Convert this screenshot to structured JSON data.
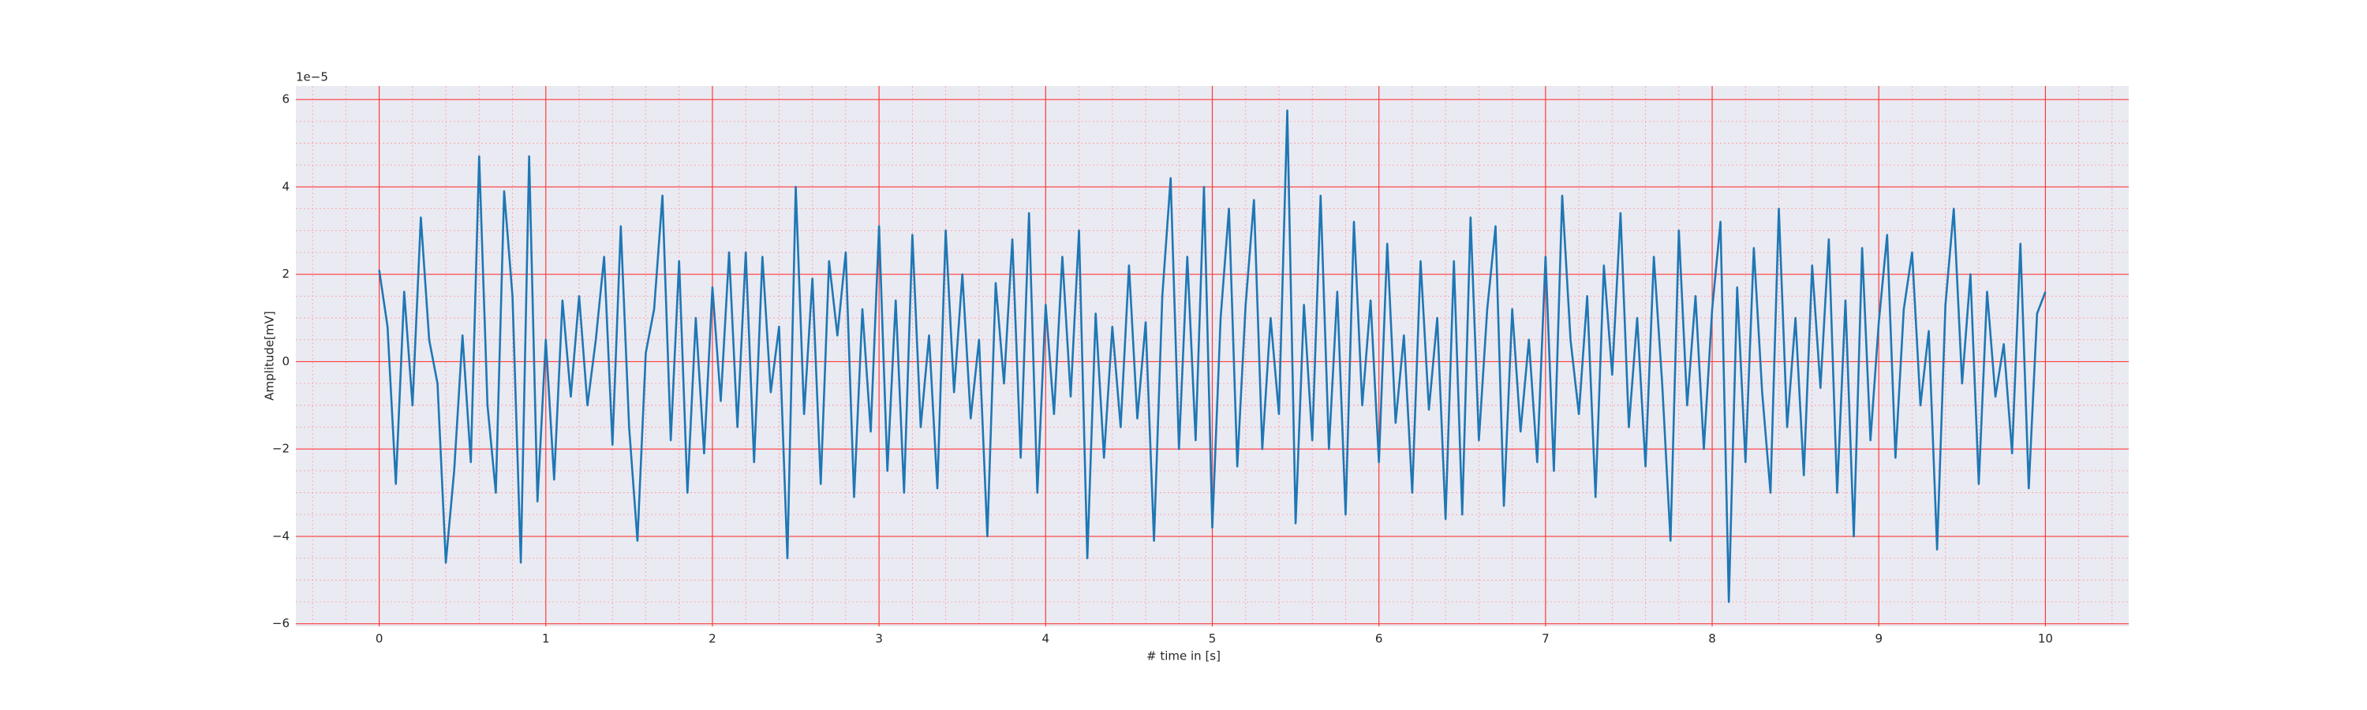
{
  "chart_data": {
    "type": "line",
    "x_label": "# time in [s]",
    "y_label": "Amplitude[mV]",
    "y_offset_label": "1e−5",
    "color": "#1f77b4",
    "grid": true,
    "minor_grid": true,
    "xlim": [
      -0.5,
      10.5
    ],
    "ylim": [
      -6.06,
      6.31
    ],
    "xticks": [
      0,
      1,
      2,
      3,
      4,
      5,
      6,
      7,
      8,
      9,
      10
    ],
    "yticks": [
      {
        "value": -6,
        "label": "−6"
      },
      {
        "value": -4,
        "label": "−4"
      },
      {
        "value": -2,
        "label": "−2"
      },
      0,
      2,
      4,
      6
    ],
    "minor_xticks": [
      -0.4,
      -0.2,
      0.2,
      0.4,
      0.6,
      0.8,
      1.2,
      1.4,
      1.6,
      1.8,
      2.2,
      2.4,
      2.6,
      2.8,
      3.2,
      3.4,
      3.6,
      3.8,
      4.2,
      4.4,
      4.6,
      4.8,
      5.2,
      5.4,
      5.6,
      5.8,
      6.2,
      6.4,
      6.6,
      6.8,
      7.2,
      7.4,
      7.6,
      7.8,
      8.2,
      8.4,
      8.6,
      8.8,
      9.2,
      9.4,
      9.6,
      9.8,
      10.2,
      10.4
    ],
    "minor_yticks": [
      -5.5,
      -5,
      -4.5,
      -3.5,
      -3,
      -2.5,
      -1.5,
      -1,
      -0.5,
      0.5,
      1,
      1.5,
      2.5,
      3,
      3.5,
      4.5,
      5,
      5.5
    ],
    "x": [
      0,
      0.05,
      0.1,
      0.15,
      0.2,
      0.25,
      0.3,
      0.35,
      0.4,
      0.45,
      0.5,
      0.55,
      0.6,
      0.65,
      0.7,
      0.75,
      0.8,
      0.85,
      0.9,
      0.95,
      1,
      1.05,
      1.1,
      1.15,
      1.2,
      1.25,
      1.3,
      1.35,
      1.4,
      1.45,
      1.5,
      1.55,
      1.6,
      1.65,
      1.7,
      1.75,
      1.8,
      1.85,
      1.9,
      1.95,
      2,
      2.05,
      2.1,
      2.15,
      2.2,
      2.25,
      2.3,
      2.35,
      2.4,
      2.45,
      2.5,
      2.55,
      2.6,
      2.65,
      2.7,
      2.75,
      2.8,
      2.85,
      2.9,
      2.95,
      3,
      3.05,
      3.1,
      3.15,
      3.2,
      3.25,
      3.3,
      3.35,
      3.4,
      3.45,
      3.5,
      3.55,
      3.6,
      3.65,
      3.7,
      3.75,
      3.8,
      3.85,
      3.9,
      3.95,
      4,
      4.05,
      4.1,
      4.15,
      4.2,
      4.25,
      4.3,
      4.35,
      4.4,
      4.45,
      4.5,
      4.55,
      4.6,
      4.65,
      4.7,
      4.75,
      4.8,
      4.85,
      4.9,
      4.95,
      5,
      5.05,
      5.1,
      5.15,
      5.2,
      5.25,
      5.3,
      5.35,
      5.4,
      5.45,
      5.5,
      5.55,
      5.6,
      5.65,
      5.7,
      5.75,
      5.8,
      5.85,
      5.9,
      5.95,
      6,
      6.05,
      6.1,
      6.15,
      6.2,
      6.25,
      6.3,
      6.35,
      6.4,
      6.45,
      6.5,
      6.55,
      6.6,
      6.65,
      6.7,
      6.75,
      6.8,
      6.85,
      6.9,
      6.95,
      7,
      7.05,
      7.1,
      7.15,
      7.2,
      7.25,
      7.3,
      7.35,
      7.4,
      7.45,
      7.5,
      7.55,
      7.6,
      7.65,
      7.7,
      7.75,
      7.8,
      7.85,
      7.9,
      7.95,
      8,
      8.05,
      8.1,
      8.15,
      8.2,
      8.25,
      8.3,
      8.35,
      8.4,
      8.45,
      8.5,
      8.55,
      8.6,
      8.65,
      8.7,
      8.75,
      8.8,
      8.85,
      8.9,
      8.95,
      9,
      9.05,
      9.1,
      9.15,
      9.2,
      9.25,
      9.3,
      9.35,
      9.4,
      9.45,
      9.5,
      9.55,
      9.6,
      9.65,
      9.7,
      9.75,
      9.8,
      9.85,
      9.9,
      9.95,
      10
    ],
    "values": [
      2.1,
      0.8,
      -2.8,
      1.6,
      -1.0,
      3.3,
      0.5,
      -0.5,
      -4.6,
      -2.5,
      0.6,
      -2.3,
      4.7,
      -1.0,
      -3.0,
      3.9,
      1.5,
      -4.6,
      4.7,
      -3.2,
      0.5,
      -2.7,
      1.4,
      -0.8,
      1.5,
      -1.0,
      0.5,
      2.4,
      -1.9,
      3.1,
      -1.5,
      -4.1,
      0.2,
      1.2,
      3.8,
      -1.8,
      2.3,
      -3.0,
      1.0,
      -2.1,
      1.7,
      -0.9,
      2.5,
      -1.5,
      2.5,
      -2.3,
      2.4,
      -0.7,
      0.8,
      -4.5,
      4.0,
      -1.2,
      1.9,
      -2.8,
      2.3,
      0.6,
      2.5,
      -3.1,
      1.2,
      -1.6,
      3.1,
      -2.5,
      1.4,
      -3.0,
      2.9,
      -1.5,
      0.6,
      -2.9,
      3.0,
      -0.7,
      2.0,
      -1.3,
      0.5,
      -4.0,
      1.8,
      -0.5,
      2.8,
      -2.2,
      3.4,
      -3.0,
      1.3,
      -1.2,
      2.4,
      -0.8,
      3.0,
      -4.5,
      1.1,
      -2.2,
      0.8,
      -1.5,
      2.2,
      -1.3,
      0.9,
      -4.1,
      1.5,
      4.2,
      -2.0,
      2.4,
      -1.8,
      4.0,
      -3.8,
      1.0,
      3.5,
      -2.4,
      1.3,
      3.7,
      -2.0,
      1.0,
      -1.2,
      5.75,
      -3.7,
      1.3,
      -1.8,
      3.8,
      -2.0,
      1.6,
      -3.5,
      3.2,
      -1.0,
      1.4,
      -2.3,
      2.7,
      -1.4,
      0.6,
      -3.0,
      2.3,
      -1.1,
      1.0,
      -3.6,
      2.3,
      -3.5,
      3.3,
      -1.8,
      1.2,
      3.1,
      -3.3,
      1.2,
      -1.6,
      0.5,
      -2.3,
      2.4,
      -2.5,
      3.8,
      0.5,
      -1.2,
      1.5,
      -3.1,
      2.2,
      -0.3,
      3.4,
      -1.5,
      1.0,
      -2.4,
      2.4,
      -0.5,
      -4.1,
      3.0,
      -1.0,
      1.5,
      -2.0,
      1.2,
      3.2,
      -5.5,
      1.7,
      -2.3,
      2.6,
      -0.7,
      -3.0,
      3.5,
      -1.5,
      1.0,
      -2.6,
      2.2,
      -0.6,
      2.8,
      -3.0,
      1.4,
      -4.0,
      2.6,
      -1.8,
      0.9,
      2.9,
      -2.2,
      1.2,
      2.5,
      -1.0,
      0.7,
      -4.3,
      1.3,
      3.5,
      -0.5,
      2.0,
      -2.8,
      1.6,
      -0.8,
      0.4,
      -2.1,
      2.7,
      -2.9,
      1.1,
      1.6
    ]
  }
}
